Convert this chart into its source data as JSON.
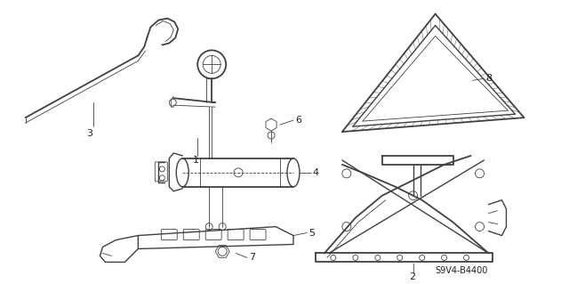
{
  "background_color": "#ffffff",
  "line_color": "#404040",
  "text_color": "#222222",
  "part_number_text": "S9V4-B4400",
  "figsize": [
    6.4,
    3.19
  ],
  "dpi": 100,
  "lw_main": 1.0,
  "lw_thin": 0.6,
  "lw_thick": 1.3
}
